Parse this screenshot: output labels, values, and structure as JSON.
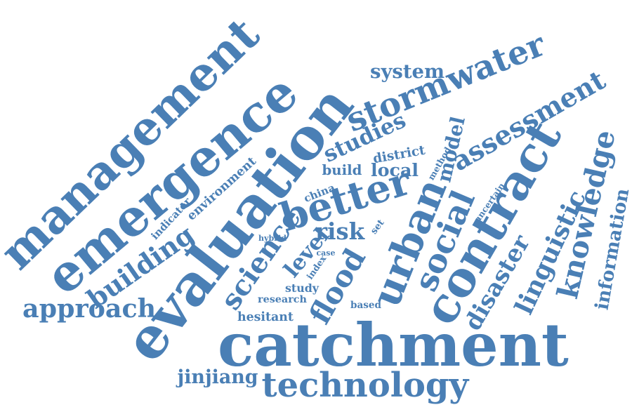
{
  "word_cloud": {
    "color": "#4a7fb5",
    "words": [
      {
        "text": "management",
        "weight": 1.0
      },
      {
        "text": "emergence",
        "weight": 0.98
      },
      {
        "text": "evaluation",
        "weight": 0.98
      },
      {
        "text": "catchment",
        "weight": 0.97
      },
      {
        "text": "technology",
        "weight": 0.72
      },
      {
        "text": "stormwater",
        "weight": 0.72
      },
      {
        "text": "contract",
        "weight": 0.72
      },
      {
        "text": "knowledge",
        "weight": 0.62
      },
      {
        "text": "assessment",
        "weight": 0.6
      },
      {
        "text": "better",
        "weight": 0.6
      },
      {
        "text": "linguistic",
        "weight": 0.58
      },
      {
        "text": "urban",
        "weight": 0.56
      },
      {
        "text": "social",
        "weight": 0.52
      },
      {
        "text": "science",
        "weight": 0.5
      },
      {
        "text": "approach",
        "weight": 0.48
      },
      {
        "text": "flood",
        "weight": 0.48
      },
      {
        "text": "disaster",
        "weight": 0.44
      },
      {
        "text": "building",
        "weight": 0.44
      },
      {
        "text": "studies",
        "weight": 0.42
      },
      {
        "text": "risk",
        "weight": 0.42
      },
      {
        "text": "information",
        "weight": 0.32
      },
      {
        "text": "jinjiang",
        "weight": 0.32
      },
      {
        "text": "model",
        "weight": 0.32
      },
      {
        "text": "build",
        "weight": 0.3
      },
      {
        "text": "local",
        "weight": 0.3
      },
      {
        "text": "system",
        "weight": 0.3
      },
      {
        "text": "hesitant",
        "weight": 0.28
      },
      {
        "text": "level",
        "weight": 0.28
      },
      {
        "text": "district",
        "weight": 0.24
      },
      {
        "text": "environment",
        "weight": 0.2
      },
      {
        "text": "study",
        "weight": 0.22
      },
      {
        "text": "research",
        "weight": 0.18
      },
      {
        "text": "based",
        "weight": 0.18
      },
      {
        "text": "indicator",
        "weight": 0.16
      },
      {
        "text": "china",
        "weight": 0.16
      },
      {
        "text": "uncertain",
        "weight": 0.14
      },
      {
        "text": "method",
        "weight": 0.13
      },
      {
        "text": "hybrid",
        "weight": 0.14
      },
      {
        "text": "index",
        "weight": 0.14
      },
      {
        "text": "case",
        "weight": 0.14
      },
      {
        "text": "set",
        "weight": 0.13
      }
    ]
  }
}
